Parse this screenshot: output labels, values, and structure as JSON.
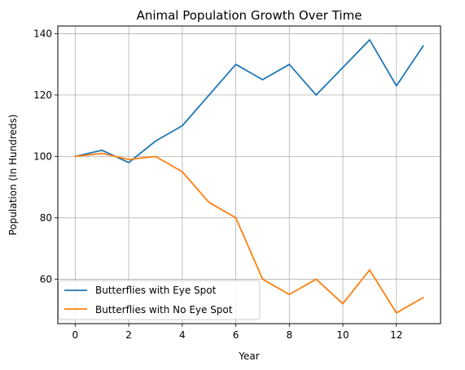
{
  "chart_data": {
    "type": "line",
    "title": "Animal Population Growth Over Time",
    "xlabel": "Year",
    "ylabel": "Population (In Hundreds)",
    "x": [
      0,
      1,
      2,
      3,
      4,
      5,
      6,
      7,
      8,
      9,
      10,
      11,
      12,
      13
    ],
    "xlim": [
      -0.65,
      13.65
    ],
    "ylim": [
      45.5,
      142.5
    ],
    "x_ticks": [
      0,
      2,
      4,
      6,
      8,
      10,
      12
    ],
    "y_ticks": [
      60,
      80,
      100,
      120,
      140
    ],
    "grid": true,
    "legend_position": "lower left",
    "series": [
      {
        "name": "Butterflies with Eye Spot",
        "color": "#1f77b4",
        "values": [
          100,
          102,
          98,
          105,
          110,
          120,
          130,
          125,
          130,
          120,
          129,
          138,
          123,
          136
        ]
      },
      {
        "name": "Butterflies with No Eye Spot",
        "color": "#ff7f0e",
        "values": [
          100,
          101,
          99,
          100,
          95,
          85,
          80,
          60,
          55,
          60,
          52,
          63,
          49,
          54
        ]
      }
    ]
  }
}
